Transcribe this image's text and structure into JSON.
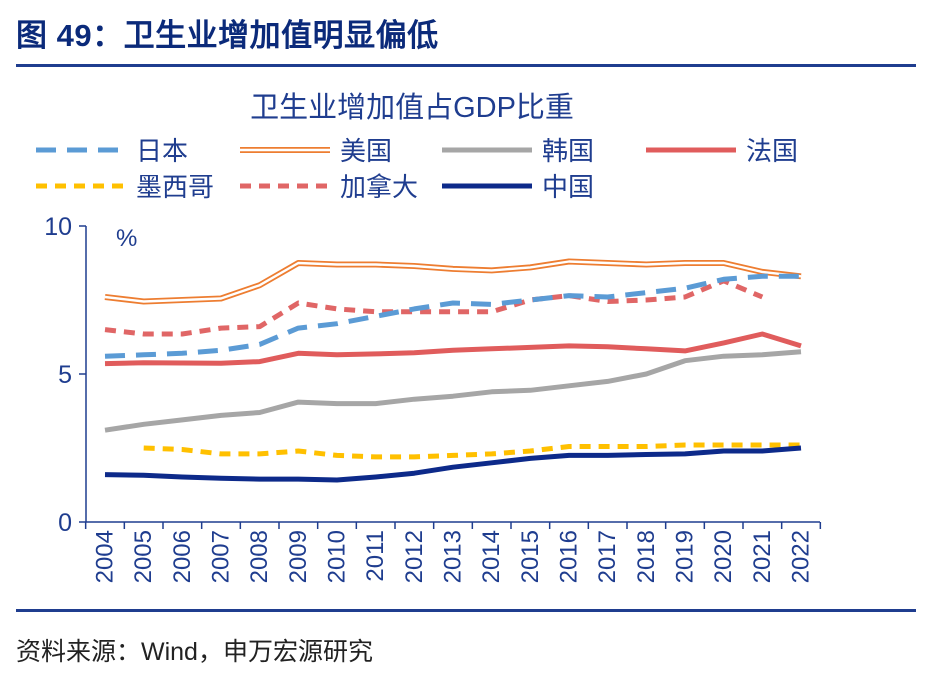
{
  "figure_title": "图 49：卫生业增加值明显偏低",
  "source_note": "资料来源：Wind，申万宏源研究",
  "chart_data": {
    "type": "line",
    "title": "卫生业增加值占GDP比重",
    "unit_label": "%",
    "ylim": [
      0,
      10
    ],
    "yticks": [
      "0",
      "5",
      "10"
    ],
    "categories": [
      "2004",
      "2005",
      "2006",
      "2007",
      "2008",
      "2009",
      "2010",
      "2011",
      "2012",
      "2013",
      "2014",
      "2015",
      "2016",
      "2017",
      "2018",
      "2019",
      "2020",
      "2021",
      "2022"
    ],
    "legend_placement": "top",
    "grid": false,
    "series": [
      {
        "name": "日本",
        "color": "#5b9bd5",
        "style": "dash",
        "values": [
          5.6,
          5.65,
          5.7,
          5.8,
          6.0,
          6.55,
          6.7,
          6.95,
          7.2,
          7.4,
          7.35,
          7.5,
          7.65,
          7.6,
          7.75,
          7.9,
          8.2,
          8.3,
          8.3
        ]
      },
      {
        "name": "美国",
        "color": "#ed7d31",
        "style": "double",
        "values": [
          7.6,
          7.45,
          7.5,
          7.55,
          8.0,
          8.75,
          8.7,
          8.7,
          8.65,
          8.55,
          8.5,
          8.6,
          8.8,
          8.75,
          8.7,
          8.75,
          8.75,
          8.45,
          8.3
        ]
      },
      {
        "name": "韩国",
        "color": "#a6a6a6",
        "style": "solid",
        "values": [
          3.1,
          3.3,
          3.45,
          3.6,
          3.7,
          4.05,
          4.0,
          4.0,
          4.15,
          4.25,
          4.4,
          4.45,
          4.6,
          4.75,
          5.0,
          5.45,
          5.6,
          5.65,
          5.75
        ]
      },
      {
        "name": "法国",
        "color": "#e05c5c",
        "style": "solid",
        "values": [
          5.35,
          5.38,
          5.37,
          5.36,
          5.42,
          5.7,
          5.65,
          5.68,
          5.72,
          5.8,
          5.85,
          5.9,
          5.95,
          5.92,
          5.85,
          5.78,
          6.05,
          6.35,
          5.95
        ]
      },
      {
        "name": "墨西哥",
        "color": "#ffc000",
        "style": "dash",
        "values": [
          null,
          2.5,
          2.45,
          2.3,
          2.3,
          2.4,
          2.25,
          2.2,
          2.2,
          2.25,
          2.3,
          2.4,
          2.55,
          2.55,
          2.55,
          2.6,
          2.6,
          2.6,
          2.6
        ]
      },
      {
        "name": "加拿大",
        "color": "#e06666",
        "style": "dash",
        "values": [
          6.5,
          6.35,
          6.35,
          6.55,
          6.6,
          7.4,
          7.2,
          7.1,
          7.1,
          7.1,
          7.1,
          7.5,
          7.65,
          7.45,
          7.5,
          7.6,
          8.15,
          7.6,
          null
        ]
      },
      {
        "name": "中国",
        "color": "#0d2a8a",
        "style": "solid",
        "values": [
          1.6,
          1.58,
          1.52,
          1.48,
          1.45,
          1.45,
          1.42,
          1.52,
          1.65,
          1.85,
          2.0,
          2.15,
          2.25,
          2.25,
          2.28,
          2.3,
          2.4,
          2.4,
          2.5
        ]
      }
    ]
  }
}
